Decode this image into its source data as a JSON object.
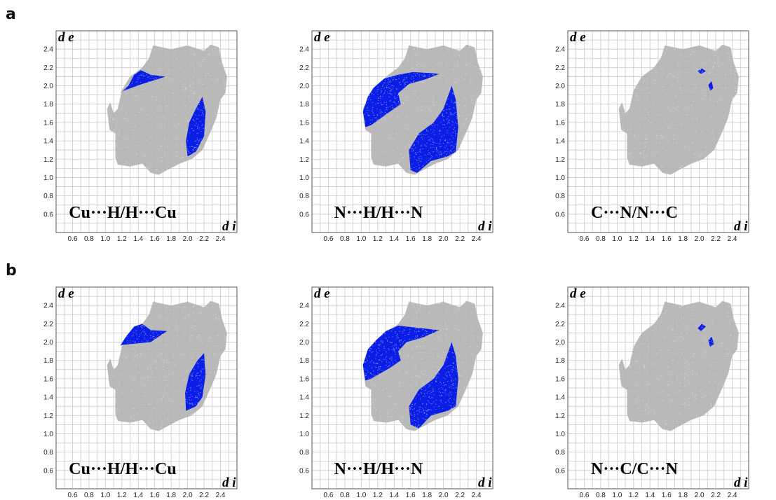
{
  "figure": {
    "row_labels": [
      "a",
      "b"
    ]
  },
  "colors": {
    "gray_points": "#b2b2b2",
    "blue_points": "#0a1ee6",
    "grid": "#c9c9c9",
    "frame": "#555555"
  },
  "chart_data": [
    {
      "type": "scatter",
      "row": "a",
      "label": "Cu···H/H···Cu",
      "xlabel": "d i",
      "ylabel": "d e",
      "xticks": [
        "0.6",
        "0.8",
        "1.0",
        "1.2",
        "1.4",
        "1.6",
        "1.8",
        "2.0",
        "2.2",
        "2.4"
      ],
      "yticks": [
        "0.6",
        "0.8",
        "1.0",
        "1.2",
        "1.4",
        "1.6",
        "1.8",
        "2.0",
        "2.2",
        "2.4"
      ],
      "xlim": [
        0.4,
        2.6
      ],
      "ylim": [
        0.4,
        2.6
      ],
      "grid": true,
      "highlight_regions": [
        {
          "points": [
            [
              1.18,
              1.92
            ],
            [
              1.28,
              2.0
            ],
            [
              1.35,
              2.12
            ],
            [
              1.43,
              2.17
            ],
            [
              1.55,
              2.12
            ],
            [
              1.73,
              2.1
            ],
            [
              1.45,
              2.02
            ],
            [
              1.2,
              1.94
            ]
          ]
        },
        {
          "points": [
            [
              2.0,
              1.23
            ],
            [
              1.98,
              1.4
            ],
            [
              2.02,
              1.6
            ],
            [
              2.1,
              1.75
            ],
            [
              2.18,
              1.88
            ],
            [
              2.22,
              1.72
            ],
            [
              2.2,
              1.45
            ],
            [
              2.1,
              1.28
            ]
          ]
        }
      ]
    },
    {
      "type": "scatter",
      "row": "a",
      "label": "N···H/H···N",
      "xlabel": "d i",
      "ylabel": "d e",
      "xticks": [
        "0.6",
        "0.8",
        "1.0",
        "1.2",
        "1.4",
        "1.6",
        "1.8",
        "2.0",
        "2.2",
        "2.4"
      ],
      "yticks": [
        "0.6",
        "0.8",
        "1.0",
        "1.2",
        "1.4",
        "1.6",
        "1.8",
        "2.0",
        "2.2",
        "2.4"
      ],
      "xlim": [
        0.4,
        2.6
      ],
      "ylim": [
        0.4,
        2.6
      ],
      "grid": true,
      "highlight_regions": [
        {
          "points": [
            [
              1.05,
              1.55
            ],
            [
              1.02,
              1.72
            ],
            [
              1.08,
              1.88
            ],
            [
              1.15,
              1.98
            ],
            [
              1.28,
              2.08
            ],
            [
              1.45,
              2.12
            ],
            [
              1.63,
              2.15
            ],
            [
              1.83,
              2.14
            ],
            [
              1.95,
              2.13
            ],
            [
              1.78,
              2.07
            ],
            [
              1.58,
              2.02
            ],
            [
              1.45,
              1.92
            ],
            [
              1.48,
              1.8
            ],
            [
              1.35,
              1.72
            ],
            [
              1.12,
              1.57
            ]
          ]
        },
        {
          "points": [
            [
              1.6,
              1.08
            ],
            [
              1.68,
              1.05
            ],
            [
              1.85,
              1.18
            ],
            [
              2.05,
              1.23
            ],
            [
              2.15,
              1.28
            ],
            [
              2.18,
              1.55
            ],
            [
              2.15,
              1.85
            ],
            [
              2.1,
              2.0
            ],
            [
              2.0,
              1.75
            ],
            [
              1.88,
              1.6
            ],
            [
              1.7,
              1.48
            ],
            [
              1.58,
              1.3
            ]
          ]
        }
      ]
    },
    {
      "type": "scatter",
      "row": "a",
      "label": "C···N/N···C",
      "xlabel": "d i",
      "ylabel": "d e",
      "xticks": [
        "0.6",
        "0.8",
        "1.0",
        "1.2",
        "1.4",
        "1.6",
        "1.8",
        "2.0",
        "2.2",
        "2.4"
      ],
      "yticks": [
        "0.6",
        "0.8",
        "1.0",
        "1.2",
        "1.4",
        "1.6",
        "1.8",
        "2.0",
        "2.2",
        "2.4"
      ],
      "xlim": [
        0.4,
        2.6
      ],
      "ylim": [
        0.4,
        2.6
      ],
      "grid": true,
      "highlight_regions": [
        {
          "points": [
            [
              1.98,
              2.16
            ],
            [
              2.03,
              2.19
            ],
            [
              2.08,
              2.16
            ],
            [
              2.02,
              2.13
            ]
          ]
        },
        {
          "points": [
            [
              2.13,
              1.95
            ],
            [
              2.11,
              2.01
            ],
            [
              2.15,
              2.05
            ],
            [
              2.17,
              1.97
            ]
          ]
        }
      ]
    },
    {
      "type": "scatter",
      "row": "b",
      "label": "Cu···H/H···Cu",
      "xlabel": "d i",
      "ylabel": "d e",
      "xticks": [
        "0.6",
        "0.8",
        "1.0",
        "1.2",
        "1.4",
        "1.6",
        "1.8",
        "2.0",
        "2.2",
        "2.4"
      ],
      "yticks": [
        "0.6",
        "0.8",
        "1.0",
        "1.2",
        "1.4",
        "1.6",
        "1.8",
        "2.0",
        "2.2",
        "2.4"
      ],
      "xlim": [
        0.4,
        2.6
      ],
      "ylim": [
        0.4,
        2.6
      ],
      "grid": true,
      "highlight_regions": [
        {
          "points": [
            [
              1.18,
              1.96
            ],
            [
              1.25,
              2.06
            ],
            [
              1.35,
              2.17
            ],
            [
              1.45,
              2.2
            ],
            [
              1.55,
              2.13
            ],
            [
              1.75,
              2.12
            ],
            [
              1.55,
              2.0
            ],
            [
              1.2,
              1.97
            ]
          ]
        },
        {
          "points": [
            [
              1.98,
              1.25
            ],
            [
              1.97,
              1.45
            ],
            [
              2.02,
              1.65
            ],
            [
              2.12,
              1.8
            ],
            [
              2.2,
              1.88
            ],
            [
              2.22,
              1.65
            ],
            [
              2.18,
              1.4
            ],
            [
              2.1,
              1.3
            ]
          ]
        }
      ]
    },
    {
      "type": "scatter",
      "row": "b",
      "label": "N···H/H···N",
      "xlabel": "d i",
      "ylabel": "d e",
      "xticks": [
        "0.6",
        "0.8",
        "1.0",
        "1.2",
        "1.4",
        "1.6",
        "1.8",
        "2.0",
        "2.2",
        "2.4"
      ],
      "yticks": [
        "0.6",
        "0.8",
        "1.0",
        "1.2",
        "1.4",
        "1.6",
        "1.8",
        "2.0",
        "2.2",
        "2.4"
      ],
      "xlim": [
        0.4,
        2.6
      ],
      "ylim": [
        0.4,
        2.6
      ],
      "grid": true,
      "highlight_regions": [
        {
          "points": [
            [
              1.05,
              1.58
            ],
            [
              1.02,
              1.75
            ],
            [
              1.08,
              1.92
            ],
            [
              1.18,
              2.02
            ],
            [
              1.3,
              2.12
            ],
            [
              1.45,
              2.18
            ],
            [
              1.65,
              2.16
            ],
            [
              1.85,
              2.14
            ],
            [
              1.95,
              2.13
            ],
            [
              1.75,
              2.05
            ],
            [
              1.55,
              2.0
            ],
            [
              1.45,
              1.9
            ],
            [
              1.48,
              1.8
            ],
            [
              1.35,
              1.72
            ],
            [
              1.12,
              1.6
            ]
          ]
        },
        {
          "points": [
            [
              1.6,
              1.1
            ],
            [
              1.7,
              1.06
            ],
            [
              1.85,
              1.2
            ],
            [
              2.05,
              1.25
            ],
            [
              2.15,
              1.3
            ],
            [
              2.18,
              1.6
            ],
            [
              2.15,
              1.85
            ],
            [
              2.1,
              2.0
            ],
            [
              2.0,
              1.75
            ],
            [
              1.88,
              1.6
            ],
            [
              1.7,
              1.48
            ],
            [
              1.58,
              1.3
            ]
          ]
        }
      ]
    },
    {
      "type": "scatter",
      "row": "b",
      "label": "N···C/C···N",
      "xlabel": "d i",
      "ylabel": "d e",
      "xticks": [
        "0.6",
        "0.8",
        "1.0",
        "1.2",
        "1.4",
        "1.6",
        "1.8",
        "2.0",
        "2.2",
        "2.4"
      ],
      "yticks": [
        "0.6",
        "0.8",
        "1.0",
        "1.2",
        "1.4",
        "1.6",
        "1.8",
        "2.0",
        "2.2",
        "2.4"
      ],
      "xlim": [
        0.4,
        2.6
      ],
      "ylim": [
        0.4,
        2.6
      ],
      "grid": true,
      "highlight_regions": [
        {
          "points": [
            [
              1.98,
              2.15
            ],
            [
              2.03,
              2.2
            ],
            [
              2.08,
              2.17
            ],
            [
              2.02,
              2.12
            ]
          ]
        },
        {
          "points": [
            [
              2.13,
              1.95
            ],
            [
              2.11,
              2.02
            ],
            [
              2.15,
              2.06
            ],
            [
              2.18,
              1.98
            ]
          ]
        }
      ]
    }
  ]
}
